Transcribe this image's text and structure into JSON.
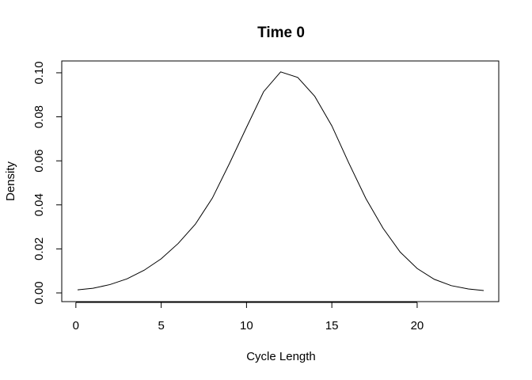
{
  "chart_data": {
    "type": "line",
    "title": "Time 0",
    "xlabel": "Cycle Length",
    "ylabel": "Density",
    "xlim": [
      0.1,
      23.9
    ],
    "ylim": [
      0.0,
      0.1007
    ],
    "xticks": [
      0,
      5,
      10,
      15,
      20
    ],
    "yticks": [
      0.0,
      0.02,
      0.04,
      0.06,
      0.08,
      0.1
    ],
    "xtick_labels": [
      "0",
      "5",
      "10",
      "15",
      "20"
    ],
    "ytick_labels": [
      "0.00",
      "0.02",
      "0.04",
      "0.06",
      "0.08",
      "0.10"
    ],
    "series": [
      {
        "x": [
          0.1,
          1,
          2,
          3,
          4,
          5,
          6,
          7,
          8,
          9,
          10,
          11,
          12,
          13,
          14,
          15,
          16,
          17,
          18,
          19,
          20,
          21,
          22,
          23,
          23.9
        ],
        "y": [
          0.0014,
          0.0021,
          0.0038,
          0.0064,
          0.0103,
          0.0155,
          0.0225,
          0.0312,
          0.0431,
          0.0588,
          0.0752,
          0.0914,
          0.1004,
          0.0979,
          0.0893,
          0.0759,
          0.0589,
          0.0428,
          0.0294,
          0.0186,
          0.0111,
          0.0062,
          0.0033,
          0.0018,
          0.0011
        ]
      }
    ],
    "grid": false,
    "legend": "none",
    "colors": {
      "line": "#000000",
      "axis": "#000000",
      "background": "#ffffff"
    }
  }
}
